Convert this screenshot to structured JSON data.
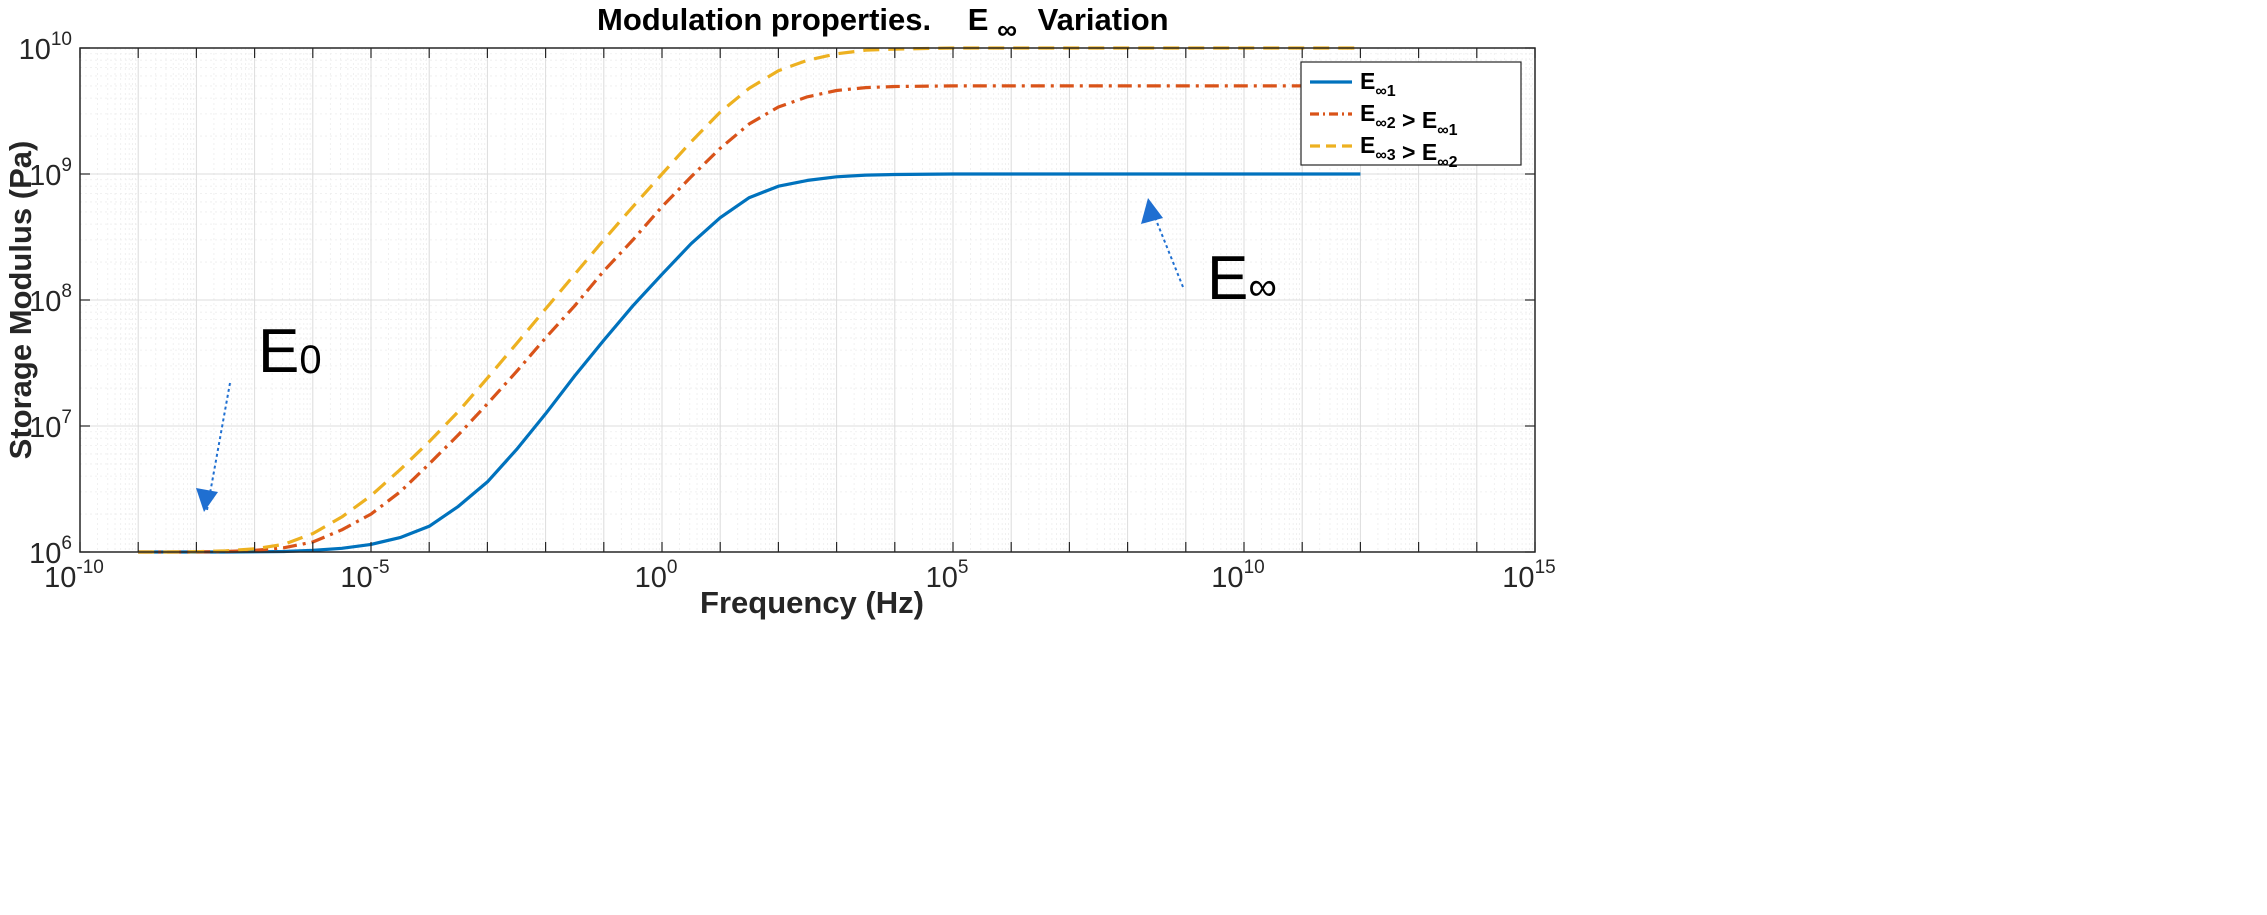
{
  "chart_data": {
    "type": "line",
    "title_main": "Modulation properties.",
    "title_symbol": "E",
    "title_symbol_sub": "∞",
    "title_rest": "Variation",
    "xlabel": "Frequency (Hz)",
    "ylabel": "Storage Modulus (Pa)",
    "xscale": "log",
    "yscale": "log",
    "xlim_exp": [
      -10,
      15
    ],
    "ylim_exp": [
      6,
      10
    ],
    "x_ticks": [
      {
        "base": "10",
        "exp": "-10"
      },
      {
        "base": "10",
        "exp": "-5"
      },
      {
        "base": "10",
        "exp": "0"
      },
      {
        "base": "10",
        "exp": "5"
      },
      {
        "base": "10",
        "exp": "10"
      },
      {
        "base": "10",
        "exp": "15"
      }
    ],
    "y_ticks": [
      {
        "base": "10",
        "exp": "6"
      },
      {
        "base": "10",
        "exp": "7"
      },
      {
        "base": "10",
        "exp": "8"
      },
      {
        "base": "10",
        "exp": "9"
      },
      {
        "base": "10",
        "exp": "10"
      }
    ],
    "grid": true,
    "legend_position": "top-right",
    "x_exponents": [
      -9,
      -8.5,
      -8,
      -7.5,
      -7,
      -6.5,
      -6,
      -5.5,
      -5,
      -4.5,
      -4,
      -3.5,
      -3,
      -2.5,
      -2,
      -1.5,
      -1,
      -0.5,
      0,
      0.5,
      1,
      1.5,
      2,
      2.5,
      3,
      3.5,
      4,
      5,
      6,
      7,
      8,
      9,
      10,
      11,
      12
    ],
    "series": [
      {
        "name": "E∞1",
        "label_parts": [
          {
            "t": "E",
            "s": "∞1"
          }
        ],
        "color": "#0072BD",
        "style": "solid",
        "y_values": [
          1000000.0,
          1000000.0,
          1000000.0,
          1000000.0,
          1003000.0,
          1010000.0,
          1030000.0,
          1070000.0,
          1150000.0,
          1300000.0,
          1600000.0,
          2300000.0,
          3600000.0,
          6500000.0,
          12500000.0,
          25000000.0,
          48000000.0,
          90000000.0,
          160000000.0,
          280000000.0,
          450000000.0,
          650000000.0,
          800000000.0,
          890000000.0,
          950000000.0,
          980000000.0,
          990000000.0,
          1000000000.0,
          1000000000.0,
          1000000000.0,
          1000000000.0,
          1000000000.0,
          1000000000.0,
          1000000000.0,
          1000000000.0
        ]
      },
      {
        "name": "E∞2 > E∞1",
        "label_parts": [
          {
            "t": "E",
            "s": "∞2"
          },
          {
            "t": " > E",
            "s": "∞1"
          }
        ],
        "color": "#D95319",
        "style": "dashdot",
        "y_values": [
          1000000.0,
          1000000.0,
          1000000.0,
          1010000.0,
          1030000.0,
          1080000.0,
          1200000.0,
          1500000.0,
          2000000.0,
          3000000.0,
          5000000.0,
          8500000.0,
          15000000.0,
          27000000.0,
          50000000.0,
          90000000.0,
          170000000.0,
          300000000.0,
          550000000.0,
          950000000.0,
          1600000000.0,
          2500000000.0,
          3400000000.0,
          4100000000.0,
          4600000000.0,
          4850000000.0,
          4950000000.0,
          5000000000.0,
          5000000000.0,
          5000000000.0,
          5000000000.0,
          5000000000.0,
          5000000000.0,
          5000000000.0,
          5000000000.0
        ]
      },
      {
        "name": "E∞3 > E∞2",
        "label_parts": [
          {
            "t": "E",
            "s": "∞3"
          },
          {
            "t": " > E",
            "s": "∞2"
          }
        ],
        "color": "#EDB120",
        "style": "dashed",
        "y_values": [
          1000000.0,
          1000000.0,
          1005000.0,
          1020000.0,
          1060000.0,
          1150000.0,
          1400000.0,
          1900000.0,
          2800000.0,
          4500000.0,
          7500000.0,
          13000000.0,
          24000000.0,
          45000000.0,
          85000000.0,
          160000000.0,
          300000000.0,
          550000000.0,
          1000000000.0,
          1800000000.0,
          3100000000.0,
          4800000000.0,
          6600000000.0,
          8000000000.0,
          9000000000.0,
          9600000000.0,
          9800000000.0,
          10000000000.0,
          10000000000.0,
          10000000000.0,
          10000000000.0,
          10000000000.0,
          10000000000.0,
          10000000000.0,
          10000000000.0
        ]
      }
    ],
    "annotations": [
      {
        "name": "e0",
        "base": "E",
        "sub": "0",
        "arrow": "down",
        "color": "#1F6FD1"
      },
      {
        "name": "einf",
        "base": "E",
        "sub": "∞",
        "arrow": "up",
        "color": "#1F6FD1"
      }
    ]
  }
}
